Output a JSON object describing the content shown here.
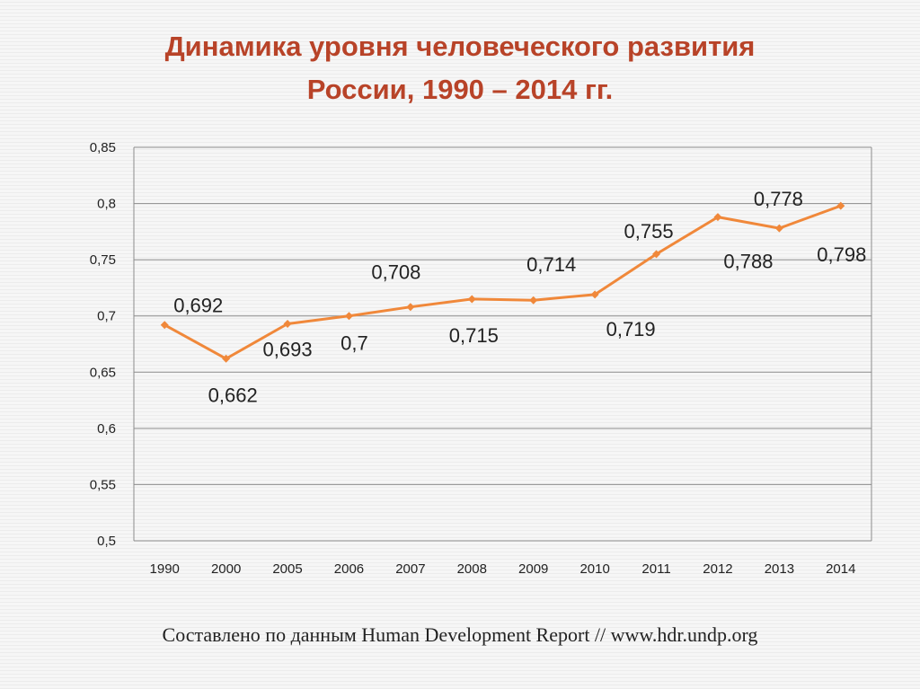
{
  "title": {
    "line1": "Динамика уровня человеческого развития",
    "line2": "России, 1990 – 2014 гг."
  },
  "source_text": "Составлено по данным Human Development Report // www.hdr.undp.org",
  "colors": {
    "title": "#b84328",
    "series": "#f0883a",
    "grid": "#8c8c8c"
  },
  "chart_data": {
    "type": "line",
    "title": "Динамика уровня человеческого развития России, 1990 – 2014 гг.",
    "categories": [
      "1990",
      "2000",
      "2005",
      "2006",
      "2007",
      "2008",
      "2009",
      "2010",
      "2011",
      "2012",
      "2013",
      "2014"
    ],
    "series": [
      {
        "values": [
          0.692,
          0.662,
          0.693,
          0.7,
          0.708,
          0.715,
          0.714,
          0.719,
          0.755,
          0.788,
          0.778,
          0.798
        ]
      }
    ],
    "data_labels": [
      "0,692",
      "0,662",
      "0,693",
      "0,7",
      "0,708",
      "0,715",
      "0,714",
      "0,719",
      "0,755",
      "0,788",
      "0,778",
      "0,798"
    ],
    "y_ticks": [
      "0,5",
      "0,55",
      "0,6",
      "0,65",
      "0,7",
      "0,75",
      "0,8",
      "0,85"
    ],
    "ylim": [
      0.5,
      0.85
    ],
    "grid": true,
    "legend": "none",
    "xlabel": "",
    "ylabel": ""
  }
}
